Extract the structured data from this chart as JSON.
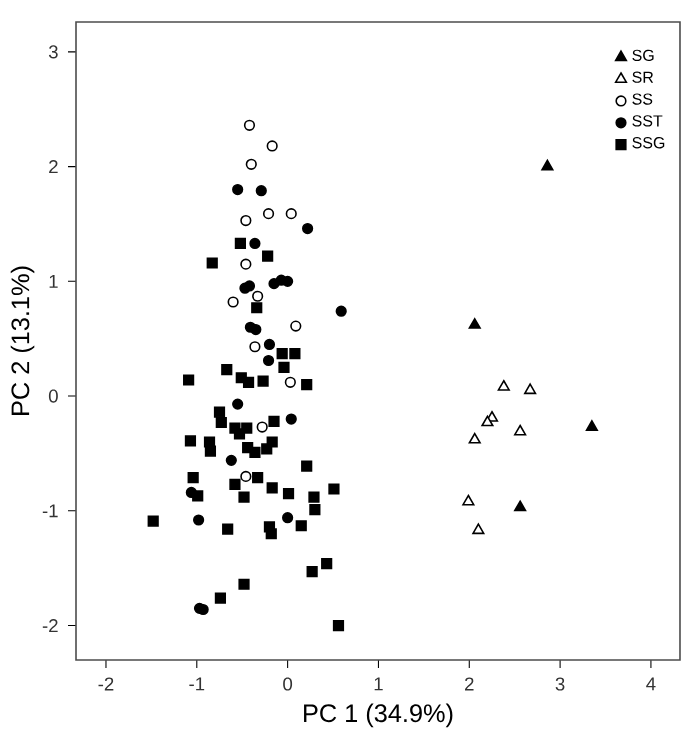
{
  "chart_data": {
    "type": "scatter",
    "xlabel": "PC 1 (34.9%)",
    "ylabel": "PC 2 (13.1%)",
    "xlim": [
      -2.33,
      4.32
    ],
    "ylim": [
      -2.3,
      3.26
    ],
    "xticks": [
      -2,
      -1,
      0,
      1,
      2,
      3,
      4
    ],
    "yticks": [
      -2,
      -1,
      0,
      1,
      2,
      3
    ],
    "grid": false,
    "legend": "top right",
    "series": [
      {
        "name": "SG",
        "color": "#000000",
        "marker": "triangle",
        "x": [
          2.86,
          2.06,
          3.35,
          2.56
        ],
        "values": [
          2.0,
          0.62,
          -0.27,
          -0.97
        ]
      },
      {
        "name": "SR",
        "color": "#ffffff",
        "marker": "triangle",
        "x": [
          2.38,
          2.67,
          2.25,
          2.2,
          2.56,
          2.06,
          1.99,
          2.1
        ],
        "values": [
          0.08,
          0.05,
          -0.19,
          -0.23,
          -0.31,
          -0.38,
          -0.92,
          -1.17
        ]
      },
      {
        "name": "SS",
        "color": "#ffffff",
        "marker": "circle",
        "x": [
          -0.42,
          -0.17,
          -0.4,
          -0.46,
          -0.21,
          0.04,
          -0.46,
          -0.33,
          -0.6,
          0.09,
          -0.36,
          0.03,
          -0.28,
          -0.46
        ],
        "values": [
          2.36,
          2.18,
          2.02,
          1.53,
          1.59,
          1.59,
          1.15,
          0.87,
          0.82,
          0.61,
          0.43,
          0.12,
          -0.27,
          -0.7
        ]
      },
      {
        "name": "SST",
        "color": "#000000",
        "marker": "circle",
        "x": [
          -0.55,
          -0.29,
          0.22,
          -0.36,
          -0.47,
          -0.42,
          -0.15,
          -0.07,
          0.0,
          0.59,
          -0.41,
          -0.35,
          -0.2,
          -0.21,
          -0.55,
          0.04,
          -0.62,
          -0.98,
          0.0,
          -0.97,
          -0.93,
          -1.06
        ],
        "values": [
          1.8,
          1.79,
          1.46,
          1.33,
          0.94,
          0.96,
          0.98,
          1.01,
          1.0,
          0.74,
          0.6,
          0.58,
          0.45,
          0.31,
          -0.07,
          -0.2,
          -0.56,
          -1.08,
          -1.06,
          -1.85,
          -1.86,
          -0.84
        ]
      },
      {
        "name": "SSG",
        "color": "#000000",
        "marker": "square",
        "x": [
          -0.52,
          -0.22,
          -0.83,
          -0.34,
          -0.06,
          0.08,
          -0.04,
          -0.67,
          -1.09,
          -0.51,
          -0.43,
          -0.27,
          0.21,
          -0.75,
          -0.73,
          -0.58,
          -0.53,
          -0.45,
          -0.15,
          -1.07,
          -0.86,
          -0.85,
          -0.44,
          -0.36,
          -0.23,
          -0.17,
          0.21,
          -1.04,
          -0.33,
          -0.58,
          -0.48,
          -0.17,
          0.01,
          0.29,
          0.51,
          0.3,
          -1.48,
          -0.66,
          -0.2,
          -0.18,
          0.15,
          0.27,
          0.43,
          -0.48,
          -0.74,
          0.56,
          -0.99
        ],
        "values": [
          1.33,
          1.22,
          1.16,
          0.77,
          0.37,
          0.37,
          0.25,
          0.23,
          0.14,
          0.16,
          0.12,
          0.13,
          0.1,
          -0.14,
          -0.23,
          -0.28,
          -0.33,
          -0.28,
          -0.22,
          -0.39,
          -0.4,
          -0.48,
          -0.45,
          -0.49,
          -0.46,
          -0.4,
          -0.61,
          -0.71,
          -0.71,
          -0.77,
          -0.88,
          -0.8,
          -0.85,
          -0.88,
          -0.81,
          -0.99,
          -1.09,
          -1.16,
          -1.14,
          -1.2,
          -1.13,
          -1.53,
          -1.46,
          -1.64,
          -1.76,
          -2.0,
          -0.87
        ]
      }
    ]
  }
}
